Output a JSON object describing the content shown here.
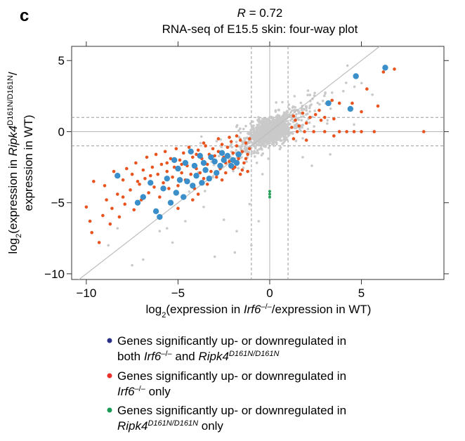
{
  "panel_label": "c",
  "chart_data": {
    "type": "scatter",
    "title_r": "R = 0.72",
    "title_r_symbol": "R",
    "title_r_value": " = 0.72",
    "subtitle": "RNA-seq of E15.5 skin: four-way plot",
    "xlabel": {
      "prefix": "log",
      "sub": "2",
      "open": "(expression in ",
      "gene": "Irf6",
      "sup": "–/–",
      "rest": "/expression in WT)"
    },
    "ylabel": {
      "prefix": "log",
      "sub": "2",
      "open": "(expression in ",
      "gene": "Ripk4",
      "sup": "D161N/D161N",
      "rest": "/",
      "line2": "expression in WT)"
    },
    "xlim": [
      -10.8,
      9.5
    ],
    "ylim": [
      -10.4,
      6.0
    ],
    "x_ticks": [
      -10,
      -5,
      0,
      5
    ],
    "y_ticks": [
      -10,
      -5,
      0,
      5
    ],
    "x_tick_labels": [
      "−10",
      "−5",
      "0",
      "5"
    ],
    "y_tick_labels": [
      "−10",
      "−5",
      "0",
      "5"
    ],
    "threshold_lines": {
      "x": [
        -1,
        1
      ],
      "y": [
        -1,
        1
      ]
    },
    "diagonal": true,
    "colors": {
      "grey": "#c9c9c9",
      "orange": "#e8531e",
      "blue": "#3a8fcb",
      "green": "#27a25a",
      "legend_blue": "#2b3087",
      "legend_red": "#e8312a",
      "legend_green": "#1a9a55",
      "axis": "#333333",
      "dash": "#9a9a9a"
    },
    "series": [
      {
        "name": "Both Irf6 and Ripk4",
        "color": "blue",
        "points": [
          [
            6.3,
            4.5
          ],
          [
            4.7,
            3.9
          ],
          [
            4.4,
            1.6
          ],
          [
            3.2,
            2.0
          ],
          [
            -8.3,
            -3.1
          ],
          [
            -7.2,
            -5.0
          ],
          [
            -6.9,
            -4.6
          ],
          [
            -6.5,
            -3.6
          ],
          [
            -6.2,
            -5.6
          ],
          [
            -6.0,
            -6.0
          ],
          [
            -5.8,
            -4.0
          ],
          [
            -5.6,
            -3.3
          ],
          [
            -5.4,
            -5.0
          ],
          [
            -5.2,
            -2.0
          ],
          [
            -5.1,
            -4.3
          ],
          [
            -5.0,
            -2.6
          ],
          [
            -4.9,
            -3.4
          ],
          [
            -4.7,
            -4.6
          ],
          [
            -4.6,
            -2.2
          ],
          [
            -4.5,
            -3.5
          ],
          [
            -4.3,
            -1.4
          ],
          [
            -4.2,
            -3.8
          ],
          [
            -4.1,
            -2.4
          ],
          [
            -4.0,
            -3.1
          ],
          [
            -3.8,
            -1.7
          ],
          [
            -3.7,
            -3.6
          ],
          [
            -3.6,
            -2.2
          ],
          [
            -3.5,
            -2.7
          ],
          [
            -3.3,
            -3.3
          ],
          [
            -3.2,
            -1.8
          ],
          [
            -3.0,
            -2.1
          ],
          [
            -2.9,
            -2.9
          ],
          [
            -2.7,
            -2.4
          ],
          [
            -2.6,
            -1.5
          ],
          [
            -2.5,
            -2.0
          ],
          [
            -2.3,
            -1.7
          ],
          [
            -2.1,
            -2.4
          ],
          [
            -2.0,
            -2.0
          ],
          [
            -1.8,
            -2.2
          ],
          [
            -1.7,
            -1.6
          ]
        ]
      },
      {
        "name": "Irf6 only",
        "color": "orange",
        "points": [
          [
            6.8,
            4.4
          ],
          [
            6.2,
            4.2
          ],
          [
            5.9,
            1.8
          ],
          [
            5.3,
            3.0
          ],
          [
            5.0,
            1.4
          ],
          [
            4.5,
            2.0
          ],
          [
            4.2,
            0.0
          ],
          [
            3.8,
            2.0
          ],
          [
            3.5,
            0.9
          ],
          [
            3.4,
            2.2
          ],
          [
            3.0,
            1.0
          ],
          [
            3.0,
            0.0
          ],
          [
            2.8,
            0.8
          ],
          [
            2.7,
            1.5
          ],
          [
            2.5,
            1.2
          ],
          [
            2.4,
            0.0
          ],
          [
            2.2,
            1.0
          ],
          [
            2.0,
            0.6
          ],
          [
            1.9,
            0.0
          ],
          [
            1.8,
            1.3
          ],
          [
            1.6,
            0.4
          ],
          [
            1.5,
            0.0
          ],
          [
            1.4,
            0.8
          ],
          [
            1.3,
            1.1
          ],
          [
            1.2,
            0.3
          ],
          [
            8.4,
            0.0
          ],
          [
            5.7,
            0.0
          ],
          [
            5.0,
            0.0
          ],
          [
            4.6,
            0.0
          ],
          [
            3.8,
            0.0
          ],
          [
            2.0,
            -0.6
          ],
          [
            1.3,
            -0.5
          ],
          [
            3.5,
            -0.3
          ],
          [
            -10.0,
            -5.3
          ],
          [
            -9.8,
            -6.3
          ],
          [
            -9.7,
            -7.1
          ],
          [
            -9.6,
            -3.5
          ],
          [
            -9.3,
            -7.8
          ],
          [
            -9.1,
            -5.9
          ],
          [
            -9.0,
            -3.8
          ],
          [
            -8.9,
            -4.8
          ],
          [
            -8.7,
            -6.5
          ],
          [
            -8.6,
            -5.4
          ],
          [
            -8.5,
            -2.8
          ],
          [
            -8.3,
            -4.4
          ],
          [
            -8.2,
            -6.0
          ],
          [
            -8.0,
            -3.4
          ],
          [
            -7.9,
            -5.1
          ],
          [
            -7.8,
            -2.6
          ],
          [
            -7.6,
            -4.1
          ],
          [
            -7.5,
            -3.0
          ],
          [
            -7.4,
            -5.5
          ],
          [
            -7.3,
            -2.2
          ],
          [
            -7.1,
            -3.7
          ],
          [
            -7.0,
            -4.8
          ],
          [
            -6.9,
            -2.7
          ],
          [
            -6.8,
            -3.3
          ],
          [
            -6.7,
            -1.8
          ],
          [
            -6.6,
            -4.3
          ],
          [
            -6.4,
            -2.5
          ],
          [
            -6.3,
            -3.9
          ],
          [
            -6.2,
            -1.6
          ],
          [
            -6.1,
            -3.0
          ],
          [
            -6.0,
            -4.6
          ],
          [
            -5.9,
            -2.3
          ],
          [
            -5.8,
            -3.6
          ],
          [
            -5.7,
            -1.4
          ],
          [
            -5.6,
            -2.8
          ],
          [
            -5.5,
            -4.0
          ],
          [
            -5.4,
            -1.9
          ],
          [
            -5.3,
            -3.2
          ],
          [
            -5.2,
            -2.5
          ],
          [
            -5.1,
            -1.2
          ],
          [
            -5.0,
            -3.8
          ],
          [
            -4.9,
            -2.0
          ],
          [
            -4.8,
            -2.9
          ],
          [
            -4.7,
            -1.5
          ],
          [
            -4.6,
            -3.4
          ],
          [
            -4.5,
            -2.4
          ],
          [
            -4.4,
            -1.1
          ],
          [
            -4.3,
            -3.0
          ],
          [
            -4.2,
            -1.8
          ],
          [
            -4.1,
            -4.0
          ],
          [
            -4.0,
            -2.6
          ],
          [
            -3.9,
            -1.3
          ],
          [
            -3.8,
            -2.9
          ],
          [
            -3.7,
            -1.9
          ],
          [
            -3.6,
            -3.3
          ],
          [
            -3.5,
            -1.0
          ],
          [
            -3.4,
            -2.3
          ],
          [
            -3.3,
            -1.6
          ],
          [
            -3.2,
            -2.8
          ],
          [
            -3.1,
            -1.2
          ],
          [
            -3.0,
            -2.0
          ],
          [
            -2.9,
            -3.2
          ],
          [
            -2.8,
            -1.4
          ],
          [
            -2.7,
            -2.6
          ],
          [
            -2.6,
            -0.9
          ],
          [
            -2.5,
            -1.8
          ],
          [
            -2.4,
            -2.9
          ],
          [
            -2.3,
            -1.1
          ],
          [
            -2.2,
            -2.1
          ],
          [
            -2.1,
            -0.7
          ],
          [
            -2.0,
            -1.5
          ],
          [
            -1.9,
            -2.5
          ],
          [
            -1.8,
            -1.0
          ],
          [
            -1.7,
            -1.9
          ],
          [
            -1.6,
            -0.6
          ],
          [
            -1.5,
            -1.4
          ],
          [
            -1.4,
            -2.2
          ],
          [
            -1.3,
            -0.8
          ],
          [
            -1.2,
            -1.6
          ],
          [
            -1.1,
            -0.5
          ],
          [
            -1.1,
            -1.2
          ],
          [
            -2.2,
            -0.4
          ],
          [
            -1.8,
            -0.3
          ],
          [
            -2.8,
            -0.5
          ],
          [
            -3.6,
            -0.8
          ],
          [
            -1.5,
            -2.7
          ],
          [
            -1.3,
            -1.9
          ],
          [
            -2.4,
            -2.2
          ],
          [
            -3.0,
            -1.7
          ],
          [
            -4.0,
            -1.6
          ],
          [
            -4.8,
            -2.3
          ],
          [
            -5.6,
            -2.2
          ],
          [
            -6.5,
            -3.1
          ],
          [
            -7.2,
            -3.5
          ],
          [
            -8.0,
            -4.6
          ],
          [
            -2.0,
            -2.6
          ],
          [
            -2.6,
            -3.4
          ],
          [
            -3.4,
            -3.7
          ],
          [
            -1.6,
            -3.0
          ],
          [
            -3.9,
            -4.4
          ],
          [
            -5.0,
            -5.4
          ],
          [
            -4.2,
            -4.8
          ],
          [
            -1.2,
            -2.8
          ]
        ]
      },
      {
        "name": "Ripk4 only",
        "color": "green",
        "points": [
          [
            0.0,
            -4.4
          ],
          [
            0.0,
            -4.2
          ],
          [
            0.0,
            -4.6
          ]
        ]
      }
    ],
    "background_cloud": {
      "seed": 7,
      "count": 1300,
      "note": "grey non-significant genes centred at origin"
    },
    "background_stragglers": [
      [
        -7.5,
        -9.4
      ],
      [
        -6.9,
        -9.0
      ],
      [
        -5.3,
        -7.8
      ],
      [
        -3.0,
        -8.8
      ],
      [
        -1.8,
        -7.0
      ],
      [
        -8.3,
        -6.8
      ],
      [
        -5.6,
        -6.8
      ],
      [
        -2.5,
        -6.2
      ],
      [
        -1.1,
        -5.1
      ],
      [
        2.3,
        -2.4
      ],
      [
        3.3,
        -1.6
      ],
      [
        4.6,
        0.5
      ],
      [
        5.6,
        2.6
      ],
      [
        -6.0,
        -7.0
      ],
      [
        -4.6,
        -6.3
      ],
      [
        -1.0,
        -8.0
      ],
      [
        1.8,
        -1.8
      ],
      [
        -3.6,
        -5.3
      ],
      [
        -8.8,
        -8.0
      ],
      [
        -0.6,
        -6.3
      ],
      [
        -1.9,
        -8.5
      ]
    ],
    "legend": [
      {
        "color": "legend_blue",
        "line1": "Genes significantly up- or downregulated in",
        "line2_pre": "both ",
        "line2_gene": "Irf6",
        "line2_sup": "–/–",
        "line2_mid": " and ",
        "line2_gene2": "Ripk4",
        "line2_sup2": "D161N/D161N",
        "line2_post": ""
      },
      {
        "color": "legend_red",
        "line1": "Genes significantly up- or downregulated in",
        "line2_pre": "",
        "line2_gene": "Irf6",
        "line2_sup": "–/–",
        "line2_mid": " only",
        "line2_gene2": "",
        "line2_sup2": "",
        "line2_post": ""
      },
      {
        "color": "legend_green",
        "line1": "Genes significantly up- or downregulated in",
        "line2_pre": "",
        "line2_gene": "Ripk4",
        "line2_sup": "D161N/D161N",
        "line2_mid": " only",
        "line2_gene2": "",
        "line2_sup2": "",
        "line2_post": ""
      }
    ]
  }
}
